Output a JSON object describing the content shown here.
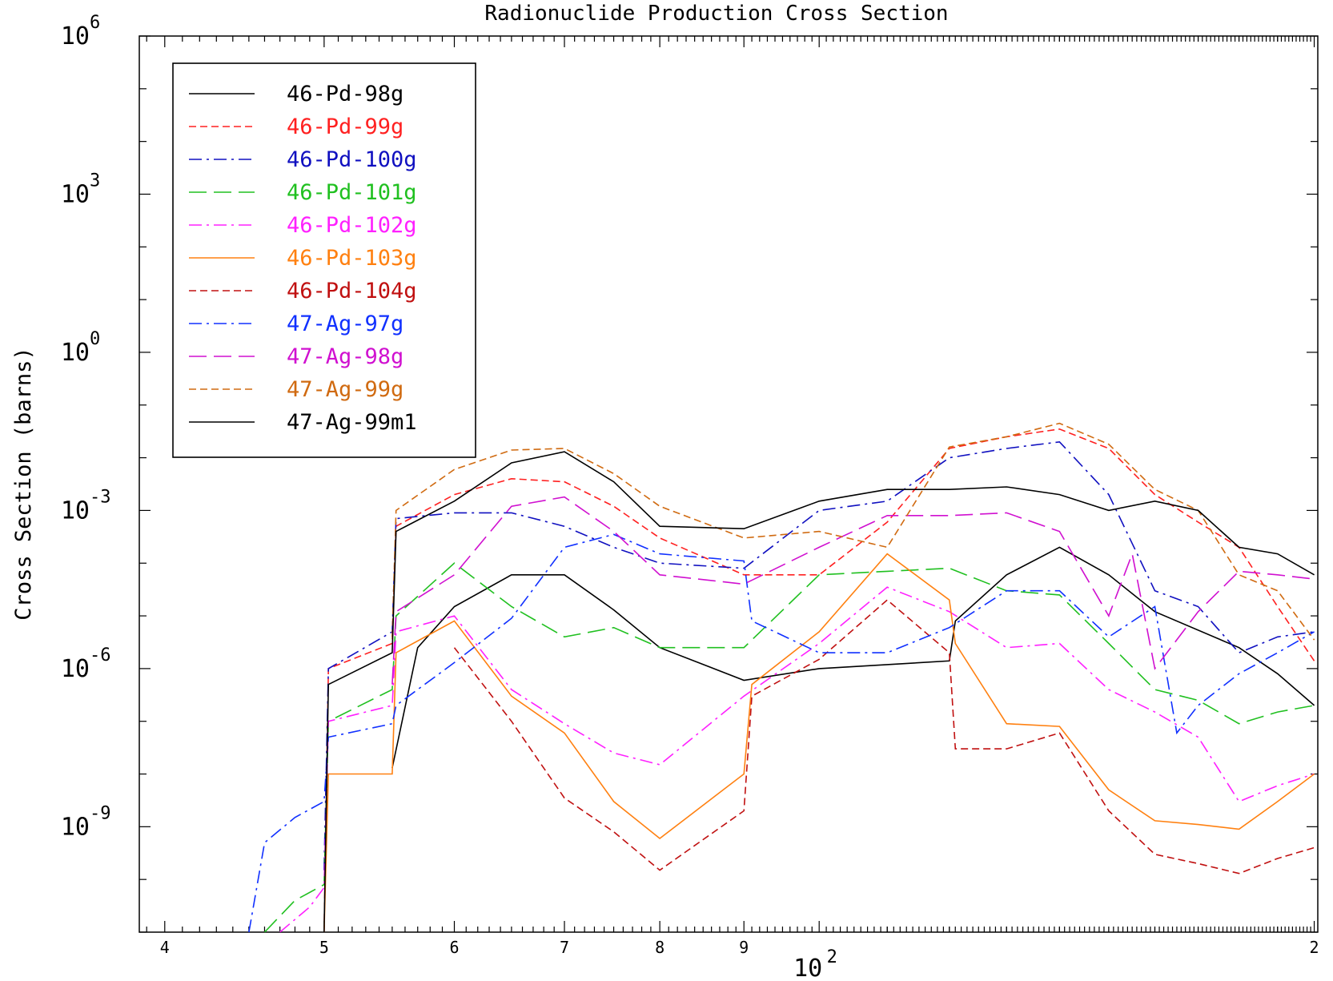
{
  "chart_data": {
    "type": "line",
    "title": "Radionuclide Production Cross Section",
    "xlabel": "",
    "ylabel": "Cross Section (barns)",
    "x_scale": "log",
    "y_scale": "log",
    "xlim": [
      38.6,
      201
    ],
    "ylim": [
      1e-11,
      1000000.0
    ],
    "x_ticks": [
      {
        "v": 40,
        "label": "4"
      },
      {
        "v": 50,
        "label": "5"
      },
      {
        "v": 60,
        "label": "6"
      },
      {
        "v": 70,
        "label": "7"
      },
      {
        "v": 80,
        "label": "8"
      },
      {
        "v": 90,
        "label": "9"
      },
      {
        "v": 200,
        "label": "2"
      }
    ],
    "x_decade_label": {
      "base": "10",
      "exp": "2"
    },
    "y_ticks": [
      {
        "v": 1000000.0,
        "base": "10",
        "exp": "6"
      },
      {
        "v": 1000.0,
        "base": "10",
        "exp": "3"
      },
      {
        "v": 1,
        "base": "10",
        "exp": "0"
      },
      {
        "v": 0.001,
        "base": "10",
        "exp": "-3"
      },
      {
        "v": 1e-06,
        "base": "10",
        "exp": "-6"
      },
      {
        "v": 1e-09,
        "base": "10",
        "exp": "-9"
      }
    ],
    "legend_position": "top-left",
    "series": [
      {
        "name": "46-Pd-98g",
        "color": "#000000",
        "dash": "solid",
        "points": [
          [
            55,
            1.3e-08
          ],
          [
            57,
            2.5e-06
          ],
          [
            60,
            1.5e-05
          ],
          [
            65,
            6e-05
          ],
          [
            70,
            6e-05
          ],
          [
            75,
            1.3e-05
          ],
          [
            80,
            2.5e-06
          ],
          [
            90,
            6e-07
          ],
          [
            100,
            1e-06
          ],
          [
            120,
            1.4e-06
          ],
          [
            121,
            8e-06
          ],
          [
            130,
            6e-05
          ],
          [
            140,
            0.0002
          ],
          [
            150,
            6e-05
          ],
          [
            160,
            1.2e-05
          ],
          [
            180,
            2.5e-06
          ],
          [
            190,
            8e-07
          ],
          [
            200,
            2e-07
          ]
        ]
      },
      {
        "name": "46-Pd-99g",
        "color": "#ff2020",
        "dash": "dash",
        "points": [
          [
            50,
            1e-11
          ],
          [
            50.3,
            1e-06
          ],
          [
            55,
            3e-06
          ],
          [
            55.3,
            0.0005
          ],
          [
            60,
            0.002
          ],
          [
            65,
            0.004
          ],
          [
            70,
            0.0035
          ],
          [
            75,
            0.0012
          ],
          [
            80,
            0.0003
          ],
          [
            90,
            6e-05
          ],
          [
            100,
            6e-05
          ],
          [
            110,
            0.0006
          ],
          [
            120,
            0.015
          ],
          [
            130,
            0.025
          ],
          [
            140,
            0.035
          ],
          [
            150,
            0.015
          ],
          [
            160,
            0.002
          ],
          [
            170,
            0.0006
          ],
          [
            180,
            0.0002
          ],
          [
            190,
            1.5e-05
          ],
          [
            200,
            1.4e-06
          ]
        ]
      },
      {
        "name": "46-Pd-100g",
        "color": "#1010c0",
        "dash": "dashdot",
        "points": [
          [
            50,
            1.5e-10
          ],
          [
            50.3,
            1e-06
          ],
          [
            55,
            5e-06
          ],
          [
            55.3,
            0.0007
          ],
          [
            60,
            0.0009
          ],
          [
            65,
            0.0009
          ],
          [
            70,
            0.0005
          ],
          [
            75,
            0.0002
          ],
          [
            80,
            0.0001
          ],
          [
            90,
            8e-05
          ],
          [
            100,
            0.001
          ],
          [
            110,
            0.0015
          ],
          [
            120,
            0.01
          ],
          [
            130,
            0.015
          ],
          [
            140,
            0.02
          ],
          [
            150,
            0.002
          ],
          [
            160,
            3e-05
          ],
          [
            170,
            1.5e-05
          ],
          [
            180,
            2e-06
          ],
          [
            190,
            4e-06
          ],
          [
            200,
            5e-06
          ]
        ]
      },
      {
        "name": "46-Pd-101g",
        "color": "#20c020",
        "dash": "longdash",
        "points": [
          [
            46,
            1e-11
          ],
          [
            48,
            4e-11
          ],
          [
            50,
            8e-11
          ],
          [
            50.3,
            1e-07
          ],
          [
            55,
            4e-07
          ],
          [
            55.3,
            1e-05
          ],
          [
            60,
            0.0001
          ],
          [
            65,
            1.5e-05
          ],
          [
            70,
            4e-06
          ],
          [
            75,
            6e-06
          ],
          [
            80,
            2.5e-06
          ],
          [
            90,
            2.5e-06
          ],
          [
            100,
            6e-05
          ],
          [
            110,
            7e-05
          ],
          [
            120,
            8e-05
          ],
          [
            130,
            3e-05
          ],
          [
            140,
            2.5e-05
          ],
          [
            150,
            3e-06
          ],
          [
            160,
            4e-07
          ],
          [
            170,
            2.5e-07
          ],
          [
            180,
            9e-08
          ],
          [
            190,
            1.5e-07
          ],
          [
            200,
            2e-07
          ]
        ]
      },
      {
        "name": "46-Pd-102g",
        "color": "#ff20ff",
        "dash": "dashdot",
        "points": [
          [
            47,
            1e-11
          ],
          [
            49,
            3e-11
          ],
          [
            50,
            7e-11
          ],
          [
            50.3,
            1e-07
          ],
          [
            55,
            2e-07
          ],
          [
            55.3,
            5e-06
          ],
          [
            60,
            1e-05
          ],
          [
            65,
            4e-07
          ],
          [
            70,
            9e-08
          ],
          [
            75,
            2.5e-08
          ],
          [
            80,
            1.5e-08
          ],
          [
            90,
            3e-07
          ],
          [
            100,
            3e-06
          ],
          [
            110,
            3.5e-05
          ],
          [
            120,
            1.2e-05
          ],
          [
            130,
            2.5e-06
          ],
          [
            140,
            3e-06
          ],
          [
            150,
            4e-07
          ],
          [
            160,
            1.5e-07
          ],
          [
            170,
            5e-08
          ],
          [
            180,
            3e-09
          ],
          [
            190,
            6e-09
          ],
          [
            200,
            1e-08
          ]
        ]
      },
      {
        "name": "46-Pd-103g",
        "color": "#ff8010",
        "dash": "solid",
        "points": [
          [
            50,
            1e-11
          ],
          [
            50.3,
            1e-08
          ],
          [
            55,
            1e-08
          ],
          [
            55.3,
            2e-06
          ],
          [
            60,
            8e-06
          ],
          [
            65,
            3e-07
          ],
          [
            70,
            6e-08
          ],
          [
            75,
            3e-09
          ],
          [
            80,
            6e-10
          ],
          [
            90,
            1e-08
          ],
          [
            91,
            5e-07
          ],
          [
            100,
            5e-06
          ],
          [
            110,
            0.00015
          ],
          [
            120,
            2e-05
          ],
          [
            121,
            3e-06
          ],
          [
            130,
            9e-08
          ],
          [
            140,
            8e-08
          ],
          [
            150,
            5e-09
          ],
          [
            160,
            1.3e-09
          ],
          [
            170,
            1.1e-09
          ],
          [
            180,
            9e-10
          ],
          [
            190,
            3e-09
          ],
          [
            200,
            1e-08
          ]
        ]
      },
      {
        "name": "46-Pd-104g",
        "color": "#c01010",
        "dash": "dash",
        "points": [
          [
            60,
            2.5e-06
          ],
          [
            65,
            1e-07
          ],
          [
            70,
            3.5e-09
          ],
          [
            75,
            8e-10
          ],
          [
            80,
            1.5e-10
          ],
          [
            90,
            2e-09
          ],
          [
            91,
            3e-07
          ],
          [
            100,
            1.5e-06
          ],
          [
            110,
            2e-05
          ],
          [
            120,
            2e-06
          ],
          [
            121,
            3e-08
          ],
          [
            130,
            3e-08
          ],
          [
            140,
            6e-08
          ],
          [
            150,
            2e-09
          ],
          [
            160,
            3e-10
          ],
          [
            170,
            2e-10
          ],
          [
            180,
            1.3e-10
          ],
          [
            190,
            2.5e-10
          ],
          [
            200,
            4e-10
          ]
        ]
      },
      {
        "name": "47-Ag-97g",
        "color": "#1030ff",
        "dash": "dashdot",
        "points": [
          [
            45,
            1e-11
          ],
          [
            46,
            5e-10
          ],
          [
            48,
            1.5e-09
          ],
          [
            50,
            3e-09
          ],
          [
            50.3,
            5e-08
          ],
          [
            55,
            9e-08
          ],
          [
            55.3,
            2e-07
          ],
          [
            60,
            1.3e-06
          ],
          [
            65,
            9e-06
          ],
          [
            70,
            0.0002
          ],
          [
            75,
            0.00035
          ],
          [
            80,
            0.00015
          ],
          [
            90,
            0.00011
          ],
          [
            91,
            8e-06
          ],
          [
            100,
            2e-06
          ],
          [
            110,
            2e-06
          ],
          [
            120,
            6e-06
          ],
          [
            130,
            3e-05
          ],
          [
            140,
            3e-05
          ],
          [
            150,
            4e-06
          ],
          [
            160,
            1.5e-05
          ],
          [
            165,
            6e-08
          ],
          [
            170,
            2e-07
          ],
          [
            180,
            8e-07
          ],
          [
            190,
            2e-06
          ],
          [
            200,
            5e-06
          ]
        ]
      },
      {
        "name": "47-Ag-98g",
        "color": "#d010d0",
        "dash": "longdash",
        "points": [
          [
            55,
            5e-07
          ],
          [
            55.3,
            1.2e-05
          ],
          [
            60,
            6e-05
          ],
          [
            65,
            0.0012
          ],
          [
            70,
            0.0018
          ],
          [
            75,
            0.0004
          ],
          [
            80,
            6e-05
          ],
          [
            90,
            4e-05
          ],
          [
            100,
            0.0002
          ],
          [
            110,
            0.0008
          ],
          [
            120,
            0.0008
          ],
          [
            130,
            0.0009
          ],
          [
            140,
            0.0004
          ],
          [
            150,
            1e-05
          ],
          [
            155,
            0.00015
          ],
          [
            160,
            1e-06
          ],
          [
            170,
            1.2e-05
          ],
          [
            180,
            7e-05
          ],
          [
            190,
            6e-05
          ],
          [
            200,
            5e-05
          ]
        ]
      },
      {
        "name": "47-Ag-99g",
        "color": "#d06a10",
        "dash": "dash",
        "points": [
          [
            55,
            4e-06
          ],
          [
            55.3,
            0.001
          ],
          [
            60,
            0.006
          ],
          [
            65,
            0.014
          ],
          [
            70,
            0.015
          ],
          [
            75,
            0.005
          ],
          [
            80,
            0.0012
          ],
          [
            90,
            0.0003
          ],
          [
            100,
            0.0004
          ],
          [
            110,
            0.0002
          ],
          [
            120,
            0.016
          ],
          [
            130,
            0.025
          ],
          [
            140,
            0.045
          ],
          [
            150,
            0.018
          ],
          [
            160,
            0.0025
          ],
          [
            170,
            0.001
          ],
          [
            180,
            6e-05
          ],
          [
            190,
            3e-05
          ],
          [
            200,
            3.5e-06
          ]
        ]
      },
      {
        "name": "47-Ag-99m1",
        "color": "#000000",
        "dash": "solid",
        "points": [
          [
            50,
            1e-11
          ],
          [
            50.3,
            5e-07
          ],
          [
            55,
            2e-06
          ],
          [
            55.3,
            0.0004
          ],
          [
            60,
            0.0015
          ],
          [
            65,
            0.008
          ],
          [
            70,
            0.013
          ],
          [
            75,
            0.0035
          ],
          [
            80,
            0.0005
          ],
          [
            90,
            0.00045
          ],
          [
            100,
            0.0015
          ],
          [
            110,
            0.0025
          ],
          [
            120,
            0.0025
          ],
          [
            130,
            0.0028
          ],
          [
            140,
            0.002
          ],
          [
            150,
            0.001
          ],
          [
            160,
            0.0015
          ],
          [
            170,
            0.001
          ],
          [
            180,
            0.0002
          ],
          [
            190,
            0.00015
          ],
          [
            200,
            6e-05
          ]
        ]
      }
    ]
  }
}
